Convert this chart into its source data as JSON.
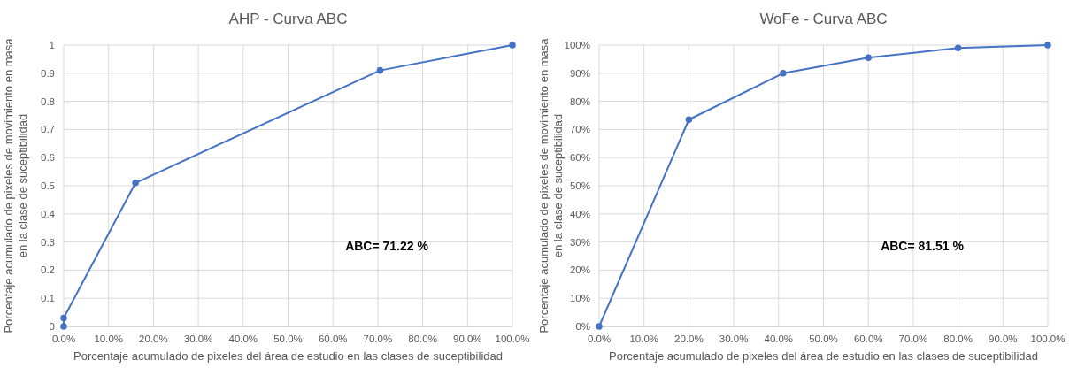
{
  "chart_data": [
    {
      "type": "line",
      "title": "AHP - Curva ABC",
      "xlabel": "Porcentaje acumulado de pixeles del área de estudio en las clases de suceptibilidad",
      "ylabel": "Porcentaje acumulado de pixeles de movimiento en masa\nen la clase de suceptibilidad",
      "annotations": [
        "ABC= 71.22 %"
      ],
      "x": [
        0,
        0,
        16,
        70.5,
        100
      ],
      "series": [
        {
          "color": "#4472c4",
          "values": [
            0,
            0.03,
            0.51,
            0.91,
            1
          ]
        }
      ],
      "xlim": [
        0,
        100
      ],
      "xticks": [
        {
          "value": 0,
          "label": "0.0%"
        },
        {
          "value": 10,
          "label": "10.0%"
        },
        {
          "value": 20,
          "label": "20.0%"
        },
        {
          "value": 30,
          "label": "30.0%"
        },
        {
          "value": 40,
          "label": "40.0%"
        },
        {
          "value": 50,
          "label": "50.0%"
        },
        {
          "value": 60,
          "label": "60.0%"
        },
        {
          "value": 70,
          "label": "70.0%"
        },
        {
          "value": 80,
          "label": "80.0%"
        },
        {
          "value": 90,
          "label": "90.0%"
        },
        {
          "value": 100,
          "label": "100.0%"
        }
      ],
      "ylim": [
        0,
        1
      ],
      "yticks": [
        0,
        0.1,
        0.2,
        0.3,
        0.4,
        0.5,
        0.6,
        0.7,
        0.8,
        0.9,
        1
      ],
      "grid": true,
      "marker": "circle",
      "line_style": "solid"
    },
    {
      "type": "line",
      "title": "WoFe - Curva ABC",
      "xlabel": "Porcentaje acumulado de pixeles del área de estudio en las clases de suceptibilidad",
      "ylabel": "Porcentaje acumulado de pixeles de movimiento en masa\nen la clase de suceptibilidad",
      "annotations": [
        "ABC= 81.51 %"
      ],
      "x": [
        0,
        20,
        41,
        60,
        80,
        100
      ],
      "series": [
        {
          "color": "#4472c4",
          "values": [
            0,
            73.5,
            90,
            95.5,
            99,
            100
          ]
        }
      ],
      "xlim": [
        0,
        100
      ],
      "xticks": [
        {
          "value": 0,
          "label": "0.0%"
        },
        {
          "value": 10,
          "label": "10.0%"
        },
        {
          "value": 20,
          "label": "20.0%"
        },
        {
          "value": 30,
          "label": "30.0%"
        },
        {
          "value": 40,
          "label": "40.0%"
        },
        {
          "value": 50,
          "label": "50.0%"
        },
        {
          "value": 60,
          "label": "60.0%"
        },
        {
          "value": 70,
          "label": "70.0%"
        },
        {
          "value": 80,
          "label": "80.0%"
        },
        {
          "value": 90,
          "label": "90.0%"
        },
        {
          "value": 100,
          "label": "100.0%"
        }
      ],
      "ylim": [
        0,
        100
      ],
      "yticks": [
        {
          "value": 0,
          "label": "0%"
        },
        {
          "value": 10,
          "label": "10%"
        },
        {
          "value": 20,
          "label": "20%"
        },
        {
          "value": 30,
          "label": "30%"
        },
        {
          "value": 40,
          "label": "40%"
        },
        {
          "value": 50,
          "label": "50%"
        },
        {
          "value": 60,
          "label": "60%"
        },
        {
          "value": 70,
          "label": "70%"
        },
        {
          "value": 80,
          "label": "80%"
        },
        {
          "value": 90,
          "label": "90%"
        },
        {
          "value": 100,
          "label": "100%"
        }
      ],
      "grid": true,
      "marker": "circle",
      "line_style": "solid"
    }
  ]
}
